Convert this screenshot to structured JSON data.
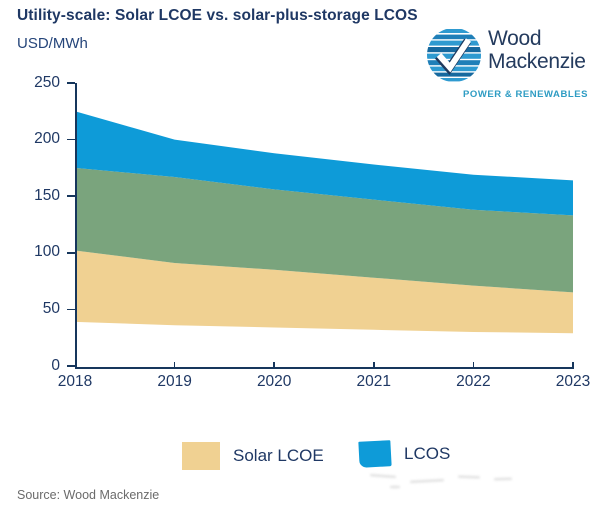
{
  "header": {
    "title": "Utility-scale: Solar LCOE vs. solar-plus-storage LCOS",
    "y_unit_label": "USD/MWh",
    "logo": {
      "line1": "Wood",
      "line2": "Mackenzie",
      "tagline": "POWER & RENEWABLES"
    }
  },
  "footer": {
    "source": "Source: Wood Mackenzie"
  },
  "colors": {
    "solar_lcoe": "#F0D192",
    "overlap": "#7AA47D",
    "lcos": "#0E9BD8",
    "axis": "#16365C",
    "text_navy": "#1F3864",
    "logo_blue": "#2E9CC3",
    "source_gray": "#6B6B6B"
  },
  "chart_data": {
    "type": "area",
    "title": "Utility-scale: Solar LCOE vs. solar-plus-storage LCOS",
    "xlabel": "",
    "ylabel": "USD/MWh",
    "x": [
      2018,
      2019,
      2020,
      2021,
      2022,
      2023
    ],
    "ylim": [
      0,
      250
    ],
    "y_ticks": [
      0,
      50,
      100,
      150,
      200,
      250
    ],
    "grid": false,
    "series": [
      {
        "name": "Solar LCOE low",
        "values": [
          39,
          36,
          34,
          32,
          30,
          29
        ]
      },
      {
        "name": "LCOS low",
        "values": [
          102,
          91,
          85,
          78,
          71,
          65
        ]
      },
      {
        "name": "Solar LCOE high",
        "values": [
          175,
          167,
          156,
          147,
          138,
          133
        ]
      },
      {
        "name": "LCOS high",
        "values": [
          225,
          200,
          188,
          178,
          169,
          164
        ]
      }
    ],
    "bands": [
      {
        "name": "solar-lcoe-band",
        "bottom_series": 0,
        "top_series": 1,
        "color": "#F0D192"
      },
      {
        "name": "overlap-band",
        "bottom_series": 1,
        "top_series": 2,
        "color": "#7AA47D"
      },
      {
        "name": "lcos-band",
        "bottom_series": 2,
        "top_series": 3,
        "color": "#0E9BD8"
      }
    ],
    "legend": [
      {
        "label": "Solar LCOE",
        "color": "#F0D192"
      },
      {
        "label": "LCOS",
        "color": "#0E9BD8"
      }
    ],
    "legend_position": "bottom"
  }
}
